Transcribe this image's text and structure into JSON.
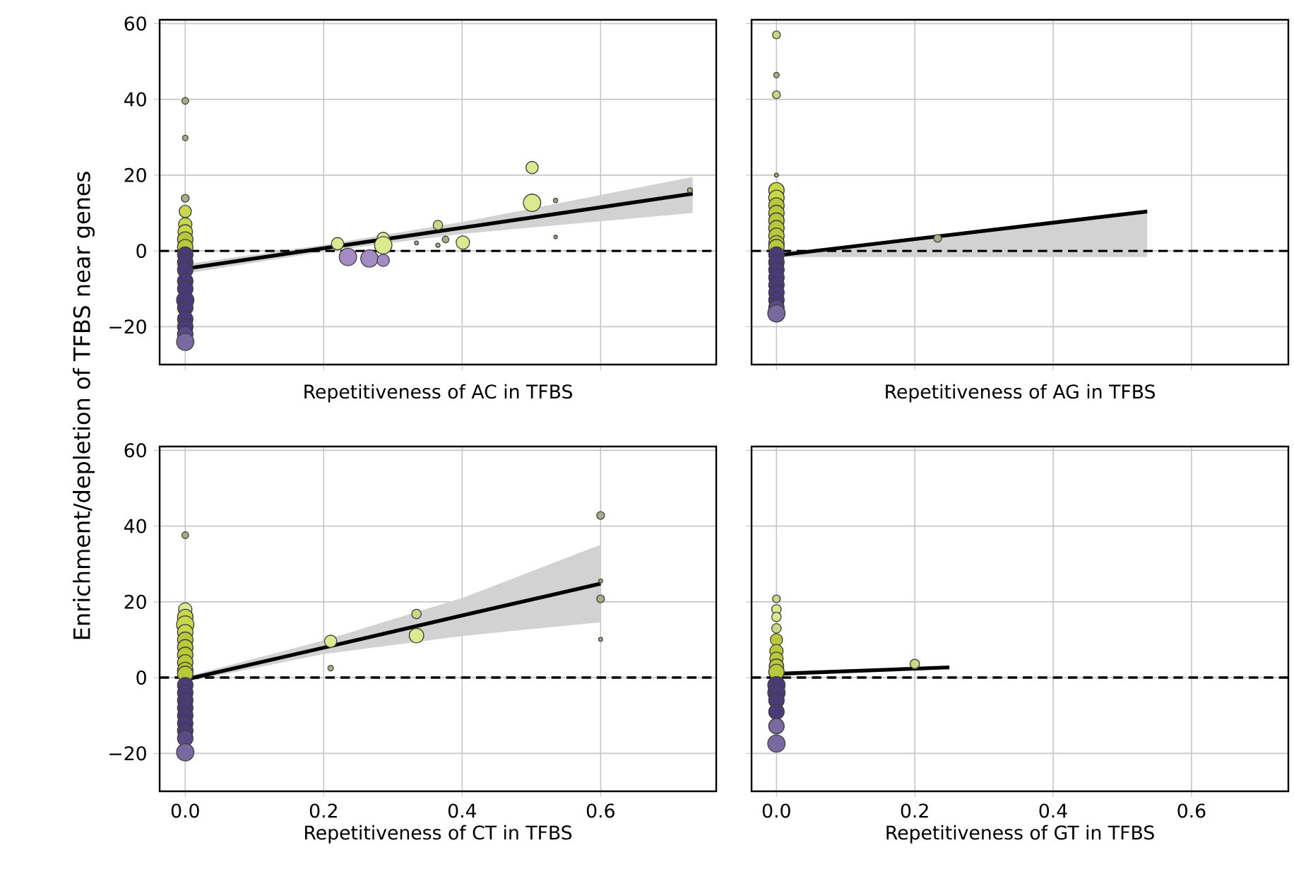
{
  "chart_data": [
    {
      "type": "bubble",
      "xlabel": "Repetitiveness of AC in TFBS",
      "ylabel": "Enrichment/depletion of TFBS near genes",
      "xlim": [
        -0.037,
        0.767
      ],
      "ylim": [
        -30,
        61
      ],
      "xticks": [
        {
          "value": 0,
          "label": null
        },
        {
          "value": 0.2,
          "label": null
        },
        {
          "value": 0.4,
          "label": null
        },
        {
          "value": 0.6,
          "label": null
        }
      ],
      "yticks": [
        {
          "value": -20,
          "label": "−20"
        },
        0,
        20,
        40,
        60
      ],
      "tick_labels": "y",
      "grid": true,
      "ref_lines": [
        {
          "axis": "y",
          "value": 0,
          "color": "#000000",
          "line_style": "dashed"
        }
      ],
      "series": [
        {
          "x": [
            0,
            0,
            0,
            0,
            0,
            0,
            0,
            0,
            0,
            0,
            0,
            0,
            0,
            0,
            0,
            0,
            0,
            0,
            0,
            0.22,
            0.235,
            0.266,
            0.286,
            0.286,
            0.286,
            0.334,
            0.365,
            0.365,
            0.376,
            0.401,
            0.501,
            0.501,
            0.535,
            0.535,
            0.729
          ],
          "values": [
            39.6,
            29.8,
            13.9,
            10.4,
            7,
            5,
            3,
            1,
            -1,
            -3,
            -5,
            -8,
            -10,
            -13,
            -15,
            -18,
            -20,
            -22,
            -24,
            1.9,
            -1.6,
            -2,
            -2.5,
            3.3,
            1.5,
            2.1,
            6.8,
            1.5,
            3,
            2.2,
            22,
            12.7,
            13.3,
            3.7,
            16
          ],
          "sizes": [
            0.15,
            0.1,
            0.2,
            0.5,
            0.6,
            0.7,
            0.8,
            0.8,
            0.8,
            0.8,
            0.8,
            0.8,
            0.8,
            1,
            0.8,
            0.8,
            0.8,
            0.8,
            1,
            0.5,
            1,
            1,
            0.5,
            0.5,
            1,
            0.05,
            0.3,
            0.06,
            0.15,
            0.6,
            0.5,
            1,
            0.06,
            0.04,
            0.08
          ],
          "colors": [
            "#a9ad86",
            "#a9ad86",
            "#a9ad86",
            "#c8d84a",
            "#c8d84a",
            "#c8d84a",
            "#b8c83a",
            "#b8c83a",
            "#4a3a78",
            "#4a3a78",
            "#4a3a78",
            "#4a3a78",
            "#4a3a78",
            "#4a3a78",
            "#4a3a78",
            "#4a3a78",
            "#4a3a78",
            "#5a4a88",
            "#7a68a0",
            "#dde98f",
            "#a48bc4",
            "#a48bc4",
            "#a48bc4",
            "#dde98f",
            "#dde98f",
            "#a9ad86",
            "#c8d884",
            "#a9ad86",
            "#a9ad86",
            "#dde98f",
            "#dde98f",
            "#dde98f",
            "#a9ad86",
            "#a9ad86",
            "#a9ad86"
          ]
        },
        {
          "type": "line",
          "x": [
            0,
            0.2,
            0.4,
            0.733
          ],
          "values": [
            -4.7,
            0.7,
            6.1,
            15.1
          ],
          "lower": [
            -6,
            -0.2,
            4.5,
            10
          ],
          "upper": [
            -3.5,
            1.6,
            7.6,
            19.5
          ],
          "color": "#000000"
        }
      ]
    },
    {
      "type": "bubble",
      "xlabel": "Repetitiveness of AG in TFBS",
      "xlim": [
        -0.036,
        0.74
      ],
      "ylim": [
        -30,
        61
      ],
      "xticks": [
        {
          "value": 0,
          "label": null
        },
        {
          "value": 0.2,
          "label": null
        },
        {
          "value": 0.4,
          "label": null
        },
        {
          "value": 0.6,
          "label": null
        }
      ],
      "yticks": [
        {
          "value": -20,
          "label": null
        },
        {
          "value": 0,
          "label": null
        },
        {
          "value": 20,
          "label": null
        },
        {
          "value": 40,
          "label": null
        },
        {
          "value": 60,
          "label": null
        }
      ],
      "tick_labels": false,
      "grid": true,
      "ref_lines": [
        {
          "axis": "y",
          "value": 0,
          "color": "#000000",
          "line_style": "dashed"
        }
      ],
      "series": [
        {
          "x": [
            0,
            0,
            0,
            0,
            0,
            0,
            0,
            0,
            0,
            0,
            0,
            0,
            0,
            0,
            0,
            0,
            0,
            0,
            0,
            0,
            0,
            0,
            0.233
          ],
          "values": [
            57,
            46.4,
            41.2,
            20,
            16,
            14,
            12,
            10,
            8,
            6,
            4,
            2,
            1,
            -1,
            -3,
            -5,
            -7,
            -9,
            -11,
            -13,
            -15,
            -16.5,
            3.3
          ],
          "sizes": [
            0.2,
            0.1,
            0.2,
            0.05,
            0.8,
            0.8,
            0.8,
            0.8,
            0.8,
            0.8,
            0.8,
            0.8,
            0.8,
            0.8,
            0.8,
            0.8,
            0.8,
            0.8,
            0.8,
            0.8,
            0.8,
            1,
            0.2
          ],
          "colors": [
            "#c8d884",
            "#a9ad86",
            "#c8d884",
            "#a9ad86",
            "#c8d84a",
            "#c8d84a",
            "#b8c83a",
            "#b8c83a",
            "#b8c83a",
            "#b8c83a",
            "#b8c83a",
            "#b8c83a",
            "#b8c83a",
            "#4a3a78",
            "#4a3a78",
            "#4a3a78",
            "#4a3a78",
            "#4a3a78",
            "#4a3a78",
            "#4a3a78",
            "#5a4a88",
            "#7a68a0",
            "#a9ad86"
          ]
        },
        {
          "type": "line",
          "x": [
            0,
            0.25,
            0.536
          ],
          "values": [
            -1.2,
            4.2,
            10.4
          ],
          "lower": [
            -1.6,
            -1.6,
            -1.6
          ],
          "upper": [
            -0.8,
            4.6,
            11
          ],
          "color": "#000000"
        }
      ]
    },
    {
      "type": "bubble",
      "xlabel": "Repetitiveness of CT in TFBS",
      "xlim": [
        -0.037,
        0.767
      ],
      "ylim": [
        -30,
        61
      ],
      "xticks": [
        {
          "value": 0,
          "label": "0.0"
        },
        {
          "value": 0.2,
          "label": "0.2"
        },
        {
          "value": 0.4,
          "label": "0.4"
        },
        {
          "value": 0.6,
          "label": "0.6"
        }
      ],
      "yticks": [
        {
          "value": -20,
          "label": "−20"
        },
        0,
        20,
        40,
        60
      ],
      "grid": true,
      "ref_lines": [
        {
          "axis": "y",
          "value": 0,
          "color": "#000000",
          "line_style": "dashed"
        }
      ],
      "series": [
        {
          "x": [
            0,
            0,
            0,
            0,
            0,
            0,
            0,
            0,
            0,
            0,
            0,
            0,
            0,
            0,
            0,
            0,
            0,
            0,
            0,
            0,
            0.21,
            0.21,
            0.334,
            0.334,
            0.6,
            0.6,
            0.6,
            0.6
          ],
          "values": [
            37.6,
            18,
            16,
            14,
            12,
            10,
            8,
            6,
            4,
            2,
            1,
            -2,
            -4,
            -6,
            -8,
            -10,
            -12,
            -14,
            -16,
            -19.7,
            9.6,
            2.5,
            16.8,
            11.1,
            42.8,
            25.5,
            20.8,
            10.1
          ],
          "sizes": [
            0.15,
            0.6,
            0.8,
            1,
            0.8,
            0.8,
            0.8,
            0.8,
            0.8,
            0.8,
            0.8,
            0.8,
            0.8,
            0.8,
            0.8,
            0.8,
            0.8,
            0.8,
            0.8,
            1,
            0.5,
            0.1,
            0.3,
            0.7,
            0.2,
            0.05,
            0.2,
            0.05
          ],
          "colors": [
            "#a9ad86",
            "#dde98f",
            "#c8d84a",
            "#c8d84a",
            "#c8d84a",
            "#b8c83a",
            "#b8c83a",
            "#b8c83a",
            "#b8c83a",
            "#b8c83a",
            "#b8c83a",
            "#4a3a78",
            "#4a3a78",
            "#4a3a78",
            "#4a3a78",
            "#4a3a78",
            "#4a3a78",
            "#4a3a78",
            "#5a4a88",
            "#7a68a0",
            "#dde98f",
            "#a9ad86",
            "#c8d884",
            "#dde98f",
            "#a9ad86",
            "#a9ad86",
            "#a9ad86",
            "#a9ad86"
          ]
        },
        {
          "type": "line",
          "x": [
            0,
            0.2,
            0.4,
            0.6
          ],
          "values": [
            -0.5,
            7.9,
            16.4,
            24.8
          ],
          "lower": [
            -1.2,
            6.2,
            11,
            14.6
          ],
          "upper": [
            0.2,
            9.8,
            21,
            35.1
          ],
          "color": "#000000"
        }
      ]
    },
    {
      "type": "bubble",
      "xlabel": "Repetitiveness of GT in TFBS",
      "xlim": [
        -0.036,
        0.74
      ],
      "ylim": [
        -30,
        61
      ],
      "xticks": [
        {
          "value": 0,
          "label": "0.0"
        },
        {
          "value": 0.2,
          "label": "0.2"
        },
        {
          "value": 0.4,
          "label": "0.4"
        },
        {
          "value": 0.6,
          "label": "0.6"
        }
      ],
      "yticks": [
        {
          "value": -20,
          "label": null
        },
        {
          "value": 0,
          "label": null
        },
        {
          "value": 20,
          "label": null
        },
        {
          "value": 40,
          "label": null
        },
        {
          "value": 60,
          "label": null
        }
      ],
      "tick_labels": "x",
      "grid": true,
      "ref_lines": [
        {
          "axis": "y",
          "value": 0,
          "color": "#000000",
          "line_style": "dashed"
        }
      ],
      "series": [
        {
          "x": [
            0,
            0,
            0,
            0,
            0,
            0,
            0,
            0,
            0,
            0,
            0,
            0,
            0,
            0,
            0,
            0.2
          ],
          "values": [
            20.8,
            18,
            16,
            13,
            10,
            7,
            5,
            3,
            1.5,
            -2,
            -4,
            -6,
            -9,
            -12.8,
            -17.4,
            3.6
          ],
          "sizes": [
            0.2,
            0.3,
            0.3,
            0.3,
            0.5,
            0.6,
            0.6,
            0.7,
            0.8,
            1,
            1,
            0.8,
            0.8,
            0.8,
            1,
            0.3
          ],
          "colors": [
            "#c8d884",
            "#dde98f",
            "#dde98f",
            "#c8d884",
            "#b8c83a",
            "#b8c83a",
            "#b8c83a",
            "#b8c83a",
            "#b8c83a",
            "#4a3a78",
            "#4a3a78",
            "#4a3a78",
            "#4a3a78",
            "#7a68a0",
            "#7a68a0",
            "#c8d884"
          ]
        },
        {
          "type": "line",
          "x": [
            0,
            0.25
          ],
          "values": [
            1,
            2.7
          ],
          "color": "#000000"
        }
      ]
    }
  ]
}
